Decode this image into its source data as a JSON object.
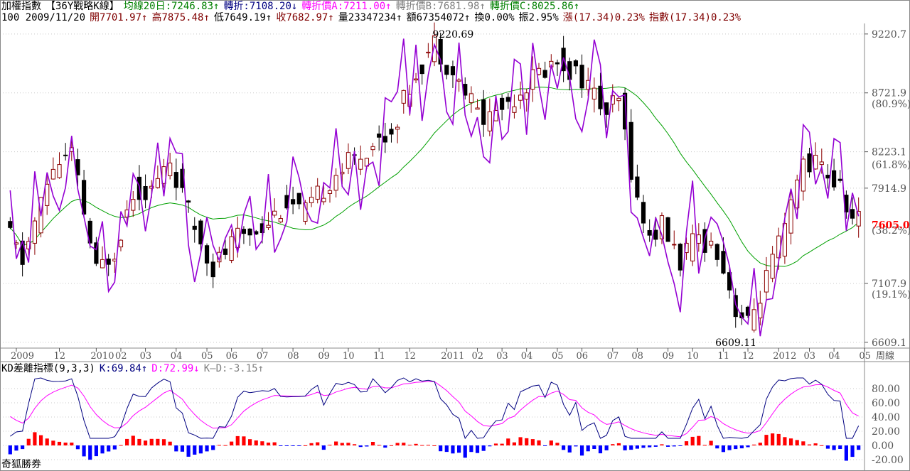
{
  "header": {
    "row1": [
      {
        "text": "加權指數",
        "color": "#000000"
      },
      {
        "text": "【36Y戰略K線】",
        "color": "#000000"
      },
      {
        "text": "均線20日:7246.83↑",
        "color": "#008000"
      },
      {
        "text": "轉折:7108.20↓",
        "color": "#000080"
      },
      {
        "text": "轉折價A:7211.00↑",
        "color": "#ff00ff"
      },
      {
        "text": "轉折價B:7681.98↑",
        "color": "#808080"
      },
      {
        "text": "轉折價C:8025.86↑",
        "color": "#008000"
      }
    ],
    "row2": [
      {
        "text": "100 2009/11/20",
        "color": "#000000"
      },
      {
        "text": "開7701.97↑",
        "color": "#800000"
      },
      {
        "text": "高7875.48↑",
        "color": "#800000"
      },
      {
        "text": "低7649.19↑",
        "color": "#000000"
      },
      {
        "text": "收7682.97↑",
        "color": "#800000"
      },
      {
        "text": "量23347234↑",
        "color": "#000000"
      },
      {
        "text": "額67354072↑",
        "color": "#000000"
      },
      {
        "text": "換0.00%",
        "color": "#000000"
      },
      {
        "text": "振2.95%",
        "color": "#000000"
      },
      {
        "text": "漲(17.34)0.23%",
        "color": "#800000"
      },
      {
        "text": "指數(17.34)0.23%",
        "color": "#800000"
      }
    ]
  },
  "kd_header": [
    {
      "text": "KD差離指標(9,3,3)",
      "color": "#000000"
    },
    {
      "text": "K:69.84↑",
      "color": "#000080"
    },
    {
      "text": "D:72.99↓",
      "color": "#ff00ff"
    },
    {
      "text": "K—D:-3.15↑",
      "color": "#808080"
    }
  ],
  "footer_label": "奇狐勝券",
  "price_axis": {
    "ticks": [
      {
        "label": "9220.7",
        "value": 9220.7
      },
      {
        "label": "8721.9",
        "value": 8721.9
      },
      {
        "label": "8223.1",
        "value": 8223.1
      },
      {
        "label": "7914.9",
        "value": 7914.9
      },
      {
        "label": "7107.9",
        "value": 7107.9
      },
      {
        "label": "6609.1",
        "value": 6609.1
      }
    ],
    "pct_labels": [
      {
        "label": "(80.9%)",
        "value": 8630
      },
      {
        "label": "(61.8%)",
        "value": 8117
      },
      {
        "label": "(38.2%)",
        "value": 7560
      },
      {
        "label": "(19.1%)",
        "value": 7016
      }
    ],
    "current_price": {
      "label": "7605.0",
      "value": 7605.0,
      "color": "#ff0000"
    }
  },
  "annotations": [
    {
      "text": "9220.69",
      "index": 68,
      "value": 9220.69
    },
    {
      "text": "6609.11",
      "index": 114,
      "value": 6609.11
    }
  ],
  "time_axis": {
    "labels": [
      {
        "text": "2009",
        "index": 1
      },
      {
        "text": "12",
        "index": 8
      },
      {
        "text": "2010",
        "index": 14
      },
      {
        "text": "02",
        "index": 18
      },
      {
        "text": "03",
        "index": 22
      },
      {
        "text": "04",
        "index": 27
      },
      {
        "text": "05",
        "index": 32
      },
      {
        "text": "06",
        "index": 36
      },
      {
        "text": "07",
        "index": 41
      },
      {
        "text": "08",
        "index": 46
      },
      {
        "text": "09",
        "index": 51
      },
      {
        "text": "10",
        "index": 55
      },
      {
        "text": "11",
        "index": 60
      },
      {
        "text": "12",
        "index": 65
      },
      {
        "text": "2011",
        "index": 71
      },
      {
        "text": "02",
        "index": 76
      },
      {
        "text": "03",
        "index": 80
      },
      {
        "text": "04",
        "index": 84
      },
      {
        "text": "05",
        "index": 89
      },
      {
        "text": "06",
        "index": 93
      },
      {
        "text": "07",
        "index": 98
      },
      {
        "text": "08",
        "index": 102
      },
      {
        "text": "09",
        "index": 107
      },
      {
        "text": "10",
        "index": 111
      },
      {
        "text": "11",
        "index": 116
      },
      {
        "text": "12",
        "index": 120
      },
      {
        "text": "2012",
        "index": 125
      },
      {
        "text": "03",
        "index": 130
      },
      {
        "text": "04",
        "index": 134
      },
      {
        "text": "05",
        "index": 139
      }
    ],
    "weekly_label": "周線"
  },
  "kd_axis": {
    "ticks": [
      {
        "label": "80.00",
        "value": 80
      },
      {
        "label": "60.00",
        "value": 60
      },
      {
        "label": "40.00",
        "value": 40
      },
      {
        "label": "20.00",
        "value": 20
      },
      {
        "label": "0.00",
        "value": 0
      },
      {
        "label": "-20.00",
        "value": -20
      }
    ]
  },
  "chart_data": {
    "type": "candlestick",
    "title": "加權指數 【36Y戰略K線】",
    "period": "weekly",
    "y_range": [
      6560,
      9310
    ],
    "kd_range": [
      -25,
      100
    ],
    "ma_label": "均線20日",
    "candles": [],
    "ma20": [],
    "turning_line": [],
    "kd_k": [],
    "kd_d": [],
    "kd_diff": []
  },
  "colors": {
    "up": "#8b0000",
    "down": "#000000",
    "ma": "#00a000",
    "turning": "#9400d3",
    "k": "#000080",
    "d": "#ff00ff",
    "hist_up": "#ff0000",
    "hist_down": "#0000ff",
    "grid": "#c8c8c8"
  }
}
